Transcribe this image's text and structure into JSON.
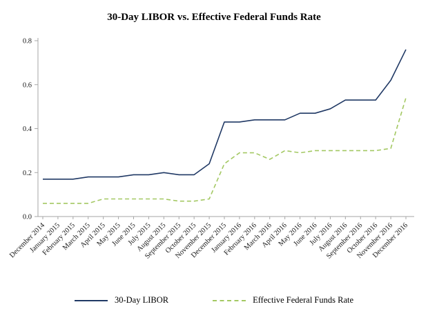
{
  "chart_data": {
    "type": "line",
    "title": "30-Day LIBOR vs. Effective Federal Funds Rate",
    "xlabel": "",
    "ylabel": "",
    "ylim": [
      0.0,
      0.8
    ],
    "yticks": [
      0.0,
      0.2,
      0.4,
      0.6,
      0.8
    ],
    "grid": false,
    "legend_position": "bottom",
    "axis_color": "#a6a6a6",
    "categories": [
      "December 2014",
      "January 2015",
      "February 2015",
      "March 2015",
      "April 2015",
      "May 2015",
      "June 2015",
      "July 2015",
      "August 2015",
      "September 2015",
      "October 2015",
      "November 2015",
      "December 2015",
      "January 2016",
      "February 2016",
      "March 2016",
      "April 2016",
      "May 2016",
      "June 2016",
      "July 2016",
      "August 2016",
      "September 2016",
      "October 2016",
      "November 2016",
      "December 2016"
    ],
    "series": [
      {
        "name": "30-Day LIBOR",
        "color": "#1f3864",
        "style": "solid",
        "values": [
          0.17,
          0.17,
          0.17,
          0.18,
          0.18,
          0.18,
          0.19,
          0.19,
          0.2,
          0.19,
          0.19,
          0.24,
          0.43,
          0.43,
          0.44,
          0.44,
          0.44,
          0.47,
          0.47,
          0.49,
          0.53,
          0.53,
          0.53,
          0.62,
          0.76
        ]
      },
      {
        "name": "Effective Federal Funds Rate",
        "color": "#a3c862",
        "style": "dashed",
        "values": [
          0.06,
          0.06,
          0.06,
          0.06,
          0.08,
          0.08,
          0.08,
          0.08,
          0.08,
          0.07,
          0.07,
          0.08,
          0.24,
          0.29,
          0.29,
          0.26,
          0.3,
          0.29,
          0.3,
          0.3,
          0.3,
          0.3,
          0.3,
          0.31,
          0.54
        ]
      }
    ]
  }
}
